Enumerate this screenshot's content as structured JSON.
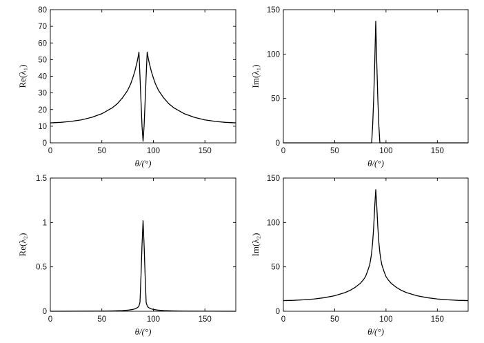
{
  "chart_data": [
    {
      "type": "line",
      "ylabel": "Re(λ₁)",
      "xlabel": "θ/(°)",
      "xlim": [
        0,
        180
      ],
      "ylim": [
        0,
        80
      ],
      "xticks": [
        "0",
        "50",
        "100",
        "150"
      ],
      "yticks": [
        "0",
        "10",
        "20",
        "30",
        "40",
        "50",
        "60",
        "70",
        "80"
      ],
      "grid": false,
      "series": [
        {
          "x": [
            0,
            10,
            20,
            30,
            40,
            50,
            60,
            65,
            70,
            75,
            78,
            80,
            82,
            84,
            85,
            86,
            87,
            88,
            89,
            90,
            91,
            92,
            93,
            94,
            95,
            96,
            98,
            100,
            102,
            105,
            110,
            115,
            120,
            130,
            140,
            150,
            160,
            170,
            180
          ],
          "y": [
            12,
            12.3,
            12.9,
            13.8,
            15.3,
            17.5,
            21,
            23.5,
            27,
            31.5,
            35.5,
            39,
            43,
            48,
            51,
            54.5,
            40,
            25,
            10,
            1,
            10,
            25,
            40,
            54.5,
            51,
            48,
            43,
            39,
            35.5,
            31.5,
            27,
            23.5,
            21,
            17.5,
            15.3,
            13.8,
            12.9,
            12.3,
            12
          ]
        }
      ]
    },
    {
      "type": "line",
      "ylabel": "Im(λ₁)",
      "xlabel": "θ/(°)",
      "xlim": [
        0,
        180
      ],
      "ylim": [
        0,
        150
      ],
      "xticks": [
        "0",
        "50",
        "100",
        "150"
      ],
      "yticks": [
        "0",
        "50",
        "100",
        "150"
      ],
      "grid": false,
      "series": [
        {
          "x": [
            0,
            86,
            87,
            88,
            89,
            90,
            91,
            92,
            93,
            94,
            180
          ],
          "y": [
            0,
            0,
            20,
            50,
            90,
            137,
            90,
            50,
            20,
            0,
            0
          ]
        }
      ]
    },
    {
      "type": "line",
      "ylabel": "Re(λ₂)",
      "xlabel": "θ/(°)",
      "xlim": [
        0,
        180
      ],
      "ylim": [
        0,
        1.5
      ],
      "xticks": [
        "0",
        "50",
        "100",
        "150"
      ],
      "yticks": [
        "0",
        "0.5",
        "1",
        "1.5"
      ],
      "grid": false,
      "series": [
        {
          "x": [
            0,
            50,
            60,
            70,
            75,
            80,
            83,
            85,
            86,
            87,
            88,
            89,
            90,
            91,
            92,
            93,
            94,
            95,
            97,
            100,
            105,
            110,
            120,
            130,
            180
          ],
          "y": [
            0,
            0.002,
            0.004,
            0.008,
            0.012,
            0.02,
            0.03,
            0.045,
            0.06,
            0.1,
            0.4,
            0.75,
            1.02,
            0.75,
            0.4,
            0.1,
            0.06,
            0.045,
            0.03,
            0.02,
            0.012,
            0.008,
            0.004,
            0.002,
            0
          ]
        }
      ]
    },
    {
      "type": "line",
      "ylabel": "Im(λ₂)",
      "xlabel": "θ/(°)",
      "xlim": [
        0,
        180
      ],
      "ylim": [
        0,
        150
      ],
      "xticks": [
        "0",
        "50",
        "100",
        "150"
      ],
      "yticks": [
        "0",
        "50",
        "100",
        "150"
      ],
      "grid": false,
      "series": [
        {
          "x": [
            0,
            10,
            20,
            30,
            40,
            50,
            60,
            65,
            70,
            75,
            78,
            80,
            82,
            84,
            85,
            86,
            87,
            88,
            89,
            90,
            91,
            92,
            93,
            94,
            95,
            96,
            98,
            100,
            102,
            105,
            110,
            115,
            120,
            130,
            140,
            150,
            160,
            170,
            180
          ],
          "y": [
            12,
            12.3,
            12.9,
            13.8,
            15.3,
            17.5,
            21,
            23.5,
            27,
            31.5,
            35.5,
            39,
            45,
            52,
            58,
            66,
            78,
            95,
            118,
            137,
            118,
            95,
            78,
            66,
            58,
            52,
            45,
            39,
            35.5,
            31.5,
            27,
            23.5,
            21,
            17.5,
            15.3,
            13.8,
            12.9,
            12.3,
            12
          ]
        }
      ]
    }
  ]
}
